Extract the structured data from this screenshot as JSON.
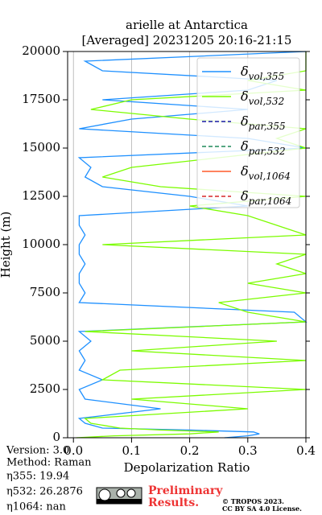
{
  "chart_data": {
    "type": "profile",
    "title": "arielle at Antarctica",
    "subtitle": "[Averaged] 20231205 20:16-21:15",
    "xlabel": "Depolarization Ratio",
    "ylabel": "Height (m)",
    "xlim": [
      -0.01,
      0.4
    ],
    "ylim": [
      0,
      20000
    ],
    "xticks": [
      {
        "value": 0,
        "label": "0.0"
      },
      0.1,
      0.2,
      0.3,
      0.4
    ],
    "yticks": [
      0,
      2500,
      5000,
      7500,
      10000,
      12500,
      15000,
      17500,
      20000
    ],
    "grid": "x",
    "legend": "upper right",
    "y": [
      0,
      100,
      200,
      300,
      400,
      500,
      750,
      1000,
      1500,
      2000,
      2500,
      3000,
      3500,
      4000,
      4500,
      5000,
      5500,
      6000,
      6500,
      7000,
      7500,
      8000,
      8500,
      9000,
      9500,
      10000,
      10500,
      11000,
      11500,
      12000,
      12500,
      13000,
      13500,
      14000,
      14500,
      15000,
      15500,
      16000,
      16500,
      17000,
      17500,
      18000,
      18500,
      19000,
      19500,
      20000
    ],
    "series": [
      {
        "name": "δvol,355",
        "color": "#1e90ff",
        "linestyle": "solid",
        "values": [
          0.26,
          0.3,
          0.32,
          0.31,
          0.2,
          0.05,
          0.02,
          0.01,
          0.15,
          0.02,
          0.01,
          0.05,
          0.01,
          0.02,
          0.01,
          0.03,
          0.01,
          0.4,
          0.38,
          0.01,
          0.02,
          0.01,
          0.01,
          0.02,
          0.01,
          0.01,
          0.02,
          0.01,
          0.01,
          0.3,
          0.2,
          0.05,
          0.02,
          0.03,
          0.01,
          0.4,
          0.3,
          0.01,
          0.1,
          0.3,
          0.05,
          0.3,
          0.35,
          0.05,
          0.02,
          0.4
        ]
      },
      {
        "name": "δvol,532",
        "color": "#7cfc00",
        "linestyle": "solid",
        "values": [
          0.005,
          0.07,
          0.2,
          0.25,
          0.15,
          0.08,
          0.03,
          0.02,
          0.3,
          0.1,
          0.4,
          0.05,
          0.08,
          0.4,
          0.1,
          0.35,
          0.02,
          0.4,
          0.3,
          0.25,
          0.4,
          0.3,
          0.4,
          0.35,
          0.4,
          0.05,
          0.4,
          0.35,
          0.3,
          0.2,
          0.4,
          0.15,
          0.05,
          0.1,
          0.25,
          0.4,
          0.35,
          0.4,
          0.2,
          0.03,
          0.1,
          0.4,
          0.3,
          0.4,
          0.4,
          0.4
        ]
      },
      {
        "name": "δpar,355",
        "color": "#1a1aa6",
        "linestyle": "dashed",
        "values": [
          null,
          null,
          null,
          null,
          null,
          null,
          null,
          null,
          null,
          null,
          null,
          null,
          null,
          null,
          null,
          null,
          null,
          null,
          null,
          null,
          null,
          null,
          null,
          null,
          null,
          null,
          null,
          null,
          null,
          null,
          null,
          null,
          null,
          null,
          null,
          null,
          null,
          null,
          null,
          null,
          null,
          null,
          null,
          null,
          null,
          null
        ]
      },
      {
        "name": "δpar,532",
        "color": "#1f8a5a",
        "linestyle": "dashed",
        "values": [
          null,
          null,
          null,
          null,
          null,
          null,
          null,
          null,
          null,
          null,
          null,
          null,
          null,
          null,
          null,
          null,
          null,
          null,
          null,
          null,
          null,
          null,
          null,
          null,
          null,
          null,
          null,
          null,
          null,
          null,
          null,
          null,
          null,
          null,
          null,
          null,
          null,
          null,
          null,
          null,
          null,
          null,
          null,
          null,
          null,
          null
        ]
      },
      {
        "name": "δvol,1064",
        "color": "#ff5a2a",
        "linestyle": "solid",
        "values": [
          null,
          null,
          null,
          null,
          null,
          null,
          null,
          null,
          null,
          null,
          null,
          null,
          null,
          null,
          null,
          null,
          null,
          null,
          null,
          null,
          null,
          null,
          null,
          null,
          null,
          null,
          null,
          null,
          null,
          null,
          null,
          null,
          null,
          null,
          null,
          null,
          null,
          null,
          null,
          null,
          null,
          null,
          null,
          null,
          null,
          null
        ]
      },
      {
        "name": "δpar,1064",
        "color": "#d62728",
        "linestyle": "dashed",
        "values": [
          null,
          null,
          null,
          null,
          null,
          null,
          null,
          null,
          null,
          null,
          null,
          null,
          null,
          null,
          null,
          null,
          null,
          null,
          null,
          null,
          null,
          null,
          null,
          null,
          null,
          null,
          null,
          null,
          null,
          null,
          null,
          null,
          null,
          null,
          null,
          null,
          null,
          null,
          null,
          null,
          null,
          null,
          null,
          null,
          null,
          null
        ]
      }
    ]
  },
  "footer": {
    "version": "Version: 3.0",
    "method": "Method: Raman",
    "eta355": "η355:  19.94",
    "eta532": "η532: 26.2876",
    "eta1064": "η1064:    nan",
    "preliminary": "Preliminary",
    "results": "Results.",
    "copyright": "© TROPOS 2023.",
    "license": "CC BY SA 4.0 License."
  }
}
